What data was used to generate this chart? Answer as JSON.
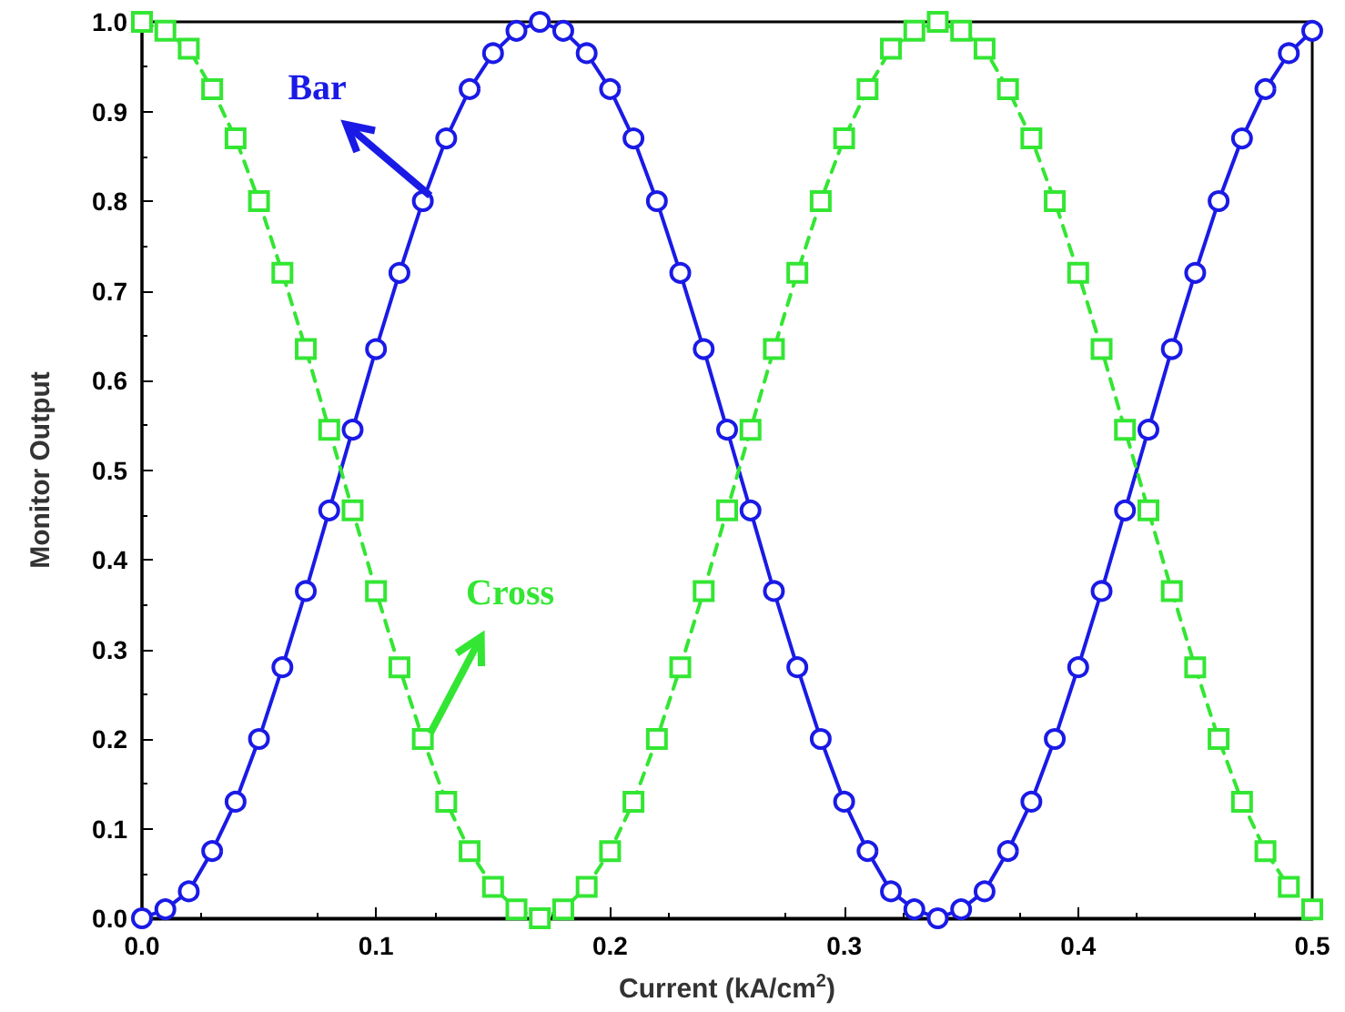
{
  "chart_data": {
    "type": "line",
    "xlabel": "Current (kA/cm$^{2}$)",
    "ylabel": "Monitor Output",
    "x": [
      0,
      0.01,
      0.02,
      0.03,
      0.04,
      0.05,
      0.06,
      0.07,
      0.08,
      0.09,
      0.1,
      0.11,
      0.12,
      0.13,
      0.14,
      0.15,
      0.16,
      0.17,
      0.18,
      0.19,
      0.2,
      0.21,
      0.22,
      0.23,
      0.24,
      0.25,
      0.26,
      0.27,
      0.28,
      0.29,
      0.3,
      0.31,
      0.32,
      0.33,
      0.34,
      0.35,
      0.36,
      0.37,
      0.38,
      0.39,
      0.4,
      0.41,
      0.42,
      0.43,
      0.44,
      0.45,
      0.46,
      0.47,
      0.48,
      0.49,
      0.5
    ],
    "series": [
      {
        "color": "#1a1ae6",
        "marker": "circle",
        "line_style": "solid",
        "values": [
          0,
          0.01,
          0.03,
          0.075,
          0.13,
          0.2,
          0.28,
          0.365,
          0.455,
          0.545,
          0.635,
          0.72,
          0.8,
          0.87,
          0.925,
          0.965,
          0.99,
          1.0,
          0.99,
          0.965,
          0.925,
          0.87,
          0.8,
          0.72,
          0.635,
          0.545,
          0.455,
          0.365,
          0.28,
          0.2,
          0.13,
          0.075,
          0.03,
          0.01,
          0,
          0.01,
          0.03,
          0.075,
          0.13,
          0.2,
          0.28,
          0.365,
          0.455,
          0.545,
          0.635,
          0.72,
          0.8,
          0.87,
          0.925,
          0.965,
          0.99
        ]
      },
      {
        "color": "#33e633",
        "marker": "square",
        "line_style": "dashed",
        "values": [
          1,
          0.99,
          0.97,
          0.925,
          0.87,
          0.8,
          0.72,
          0.635,
          0.545,
          0.455,
          0.365,
          0.28,
          0.2,
          0.13,
          0.075,
          0.035,
          0.01,
          0,
          0.01,
          0.035,
          0.075,
          0.13,
          0.2,
          0.28,
          0.365,
          0.455,
          0.545,
          0.635,
          0.72,
          0.8,
          0.87,
          0.925,
          0.97,
          0.99,
          1,
          0.99,
          0.97,
          0.925,
          0.87,
          0.8,
          0.72,
          0.635,
          0.545,
          0.455,
          0.365,
          0.28,
          0.2,
          0.13,
          0.075,
          0.035,
          0.01
        ]
      }
    ],
    "annotations": [
      {
        "text": "Bar",
        "x": 0.12,
        "y": 0.8
      },
      {
        "text": "Cross",
        "x": 0.12,
        "y": 0.2
      }
    ],
    "xlim": [
      0,
      0.5
    ],
    "xticks": [
      {
        "value": 0,
        "label": "0.0"
      },
      {
        "value": 0.1,
        "label": "0.1"
      },
      {
        "value": 0.2,
        "label": "0.2"
      },
      {
        "value": 0.3,
        "label": "0.3"
      },
      {
        "value": 0.4,
        "label": "0.4"
      },
      {
        "value": 0.5,
        "label": "0.5"
      }
    ],
    "ylim": [
      0,
      1
    ],
    "yticks": [
      {
        "value": 0,
        "label": "0.0"
      },
      {
        "value": 0.1,
        "label": "0.1"
      },
      {
        "value": 0.2,
        "label": "0.2"
      },
      {
        "value": 0.3,
        "label": "0.3"
      },
      {
        "value": 0.4,
        "label": "0.4"
      },
      {
        "value": 0.5,
        "label": "0.5"
      },
      {
        "value": 0.6,
        "label": "0.6"
      },
      {
        "value": 0.7,
        "label": "0.7"
      },
      {
        "value": 0.8,
        "label": "0.8"
      },
      {
        "value": 0.9,
        "label": "0.9"
      },
      {
        "value": 1,
        "label": "1.0"
      }
    ],
    "grid": false
  }
}
